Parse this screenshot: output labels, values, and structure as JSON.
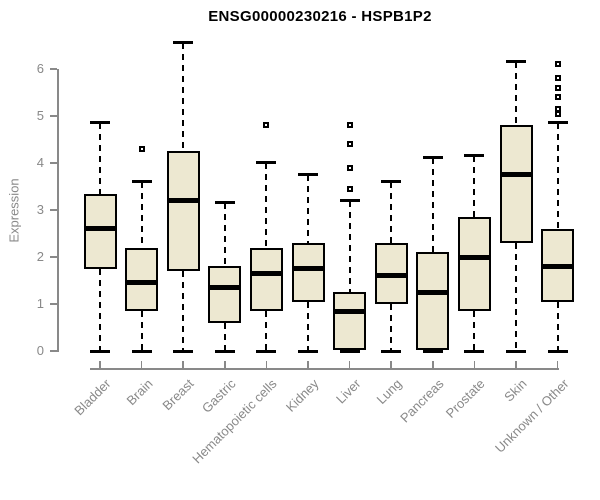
{
  "chart_data": {
    "type": "boxplot",
    "title": "ENSG00000230216 - HSPB1P2",
    "ylabel": "Expression",
    "xlabel": "",
    "ylim": [
      0,
      6
    ],
    "y_ticks": [
      0,
      1,
      2,
      3,
      4,
      5,
      6
    ],
    "grid": false,
    "legend": "none",
    "categories": [
      "Bladder",
      "Brain",
      "Breast",
      "Gastric",
      "Hematopoietic cells",
      "Kidney",
      "Liver",
      "Lung",
      "Pancreas",
      "Prostate",
      "Skin",
      "Unknown / Other"
    ],
    "series": [
      {
        "name": "Bladder",
        "whisker_low": 0,
        "q1": 1.75,
        "median": 2.6,
        "q3": 3.35,
        "whisker_high": 4.85,
        "outliers": []
      },
      {
        "name": "Brain",
        "whisker_low": 0,
        "q1": 0.85,
        "median": 1.45,
        "q3": 2.2,
        "whisker_high": 3.6,
        "outliers": [
          4.3
        ]
      },
      {
        "name": "Breast",
        "whisker_low": 0,
        "q1": 1.7,
        "median": 3.2,
        "q3": 4.25,
        "whisker_high": 6.55,
        "outliers": []
      },
      {
        "name": "Gastric",
        "whisker_low": 0,
        "q1": 0.6,
        "median": 1.35,
        "q3": 1.8,
        "whisker_high": 3.15,
        "outliers": []
      },
      {
        "name": "Hematopoietic cells",
        "whisker_low": 0,
        "q1": 0.85,
        "median": 1.65,
        "q3": 2.2,
        "whisker_high": 4.0,
        "outliers": [
          4.8
        ]
      },
      {
        "name": "Kidney",
        "whisker_low": 0,
        "q1": 1.05,
        "median": 1.75,
        "q3": 2.3,
        "whisker_high": 3.75,
        "outliers": []
      },
      {
        "name": "Liver",
        "whisker_low": 0,
        "q1": 0.03,
        "median": 0.85,
        "q3": 1.25,
        "whisker_high": 3.2,
        "outliers": [
          4.8,
          4.4,
          3.9,
          3.45
        ]
      },
      {
        "name": "Lung",
        "whisker_low": 0,
        "q1": 1.0,
        "median": 1.6,
        "q3": 2.3,
        "whisker_high": 3.6,
        "outliers": []
      },
      {
        "name": "Pancreas",
        "whisker_low": 0,
        "q1": 0.03,
        "median": 1.25,
        "q3": 2.1,
        "whisker_high": 4.1,
        "outliers": []
      },
      {
        "name": "Prostate",
        "whisker_low": 0,
        "q1": 0.85,
        "median": 2.0,
        "q3": 2.85,
        "whisker_high": 4.15,
        "outliers": []
      },
      {
        "name": "Skin",
        "whisker_low": 0,
        "q1": 2.3,
        "median": 3.75,
        "q3": 4.8,
        "whisker_high": 6.15,
        "outliers": []
      },
      {
        "name": "Unknown / Other",
        "whisker_low": 0,
        "q1": 1.05,
        "median": 1.8,
        "q3": 2.6,
        "whisker_high": 4.85,
        "outliers": [
          6.1,
          5.8,
          5.6,
          5.4,
          5.15,
          5.05
        ]
      }
    ],
    "colors": {
      "box_fill": "#EDE8D1",
      "box_border": "#000000",
      "median": "#000000",
      "axis": "#898989",
      "tick_label": "#898989",
      "title": "#000000",
      "background": "#FFFFFF"
    }
  }
}
